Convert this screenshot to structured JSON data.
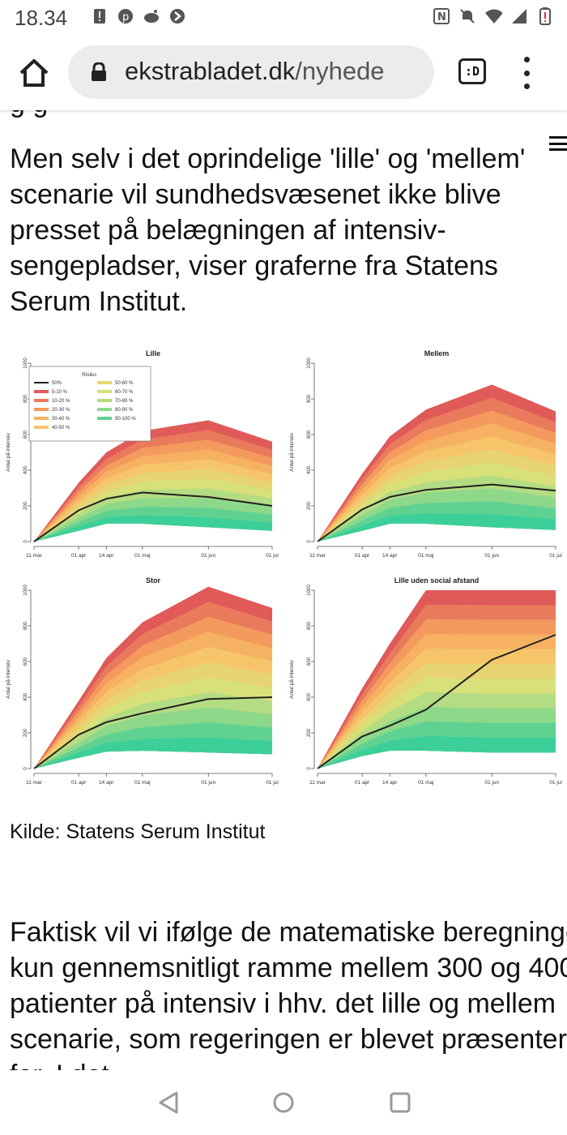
{
  "status_bar": {
    "time": "18.34",
    "left_icons": [
      "notification-icon",
      "pinterest-icon",
      "reddit-icon",
      "arrow-app-icon"
    ],
    "right_icons": [
      "nfc-icon",
      "mute-icon",
      "wifi-icon",
      "signal-icon",
      "battery-alert-icon"
    ]
  },
  "browser": {
    "url_host": "ekstrabladet.dk",
    "url_path": "/nyhede",
    "tabs_label": ":D"
  },
  "article": {
    "paragraph_1": "Men selv i det oprindelige 'lille' og 'mellem' scenarie vil sundhedsvæsenet ikke blive presset på belægningen af intensiv-sengepladser, viser graferne fra Statens Serum Institut.",
    "caption": "Kilde: Statens Serum Institut",
    "paragraph_2": "Faktisk vil vi ifølge de matematiske beregninger kun gennemsnitligt ramme mellem 300 og 400 patienter på intensiv i hhv. det lille og mellem scenarie, som regeringen er blevet præsenteret for. I det"
  },
  "chart_data": [
    {
      "type": "area",
      "title": "Lille",
      "ylabel": "Antal på intensiv",
      "x_ticks": [
        "11 mar",
        "01 apr",
        "14 apr",
        "01 maj",
        "01 jun",
        "01 jul"
      ],
      "y_ticks": [
        "0",
        "200",
        "400",
        "600",
        "800",
        "1000"
      ],
      "ylim": [
        0,
        1000
      ],
      "legend": {
        "title": "Risiko",
        "entries": [
          "50%",
          "5-10 %",
          "10-20 %",
          "20-30 %",
          "30-40 %",
          "40-50 %",
          "50-60 %",
          "60-70 %",
          "70-80 %",
          "80-90 %",
          "90-100 %"
        ],
        "placement": "top-left"
      },
      "x": [
        0,
        21,
        34,
        51,
        82,
        112
      ],
      "median": [
        0,
        175,
        240,
        275,
        250,
        200
      ],
      "upper": [
        0,
        330,
        500,
        620,
        680,
        560
      ],
      "lower": [
        0,
        60,
        100,
        100,
        80,
        60
      ]
    },
    {
      "type": "area",
      "title": "Mellem",
      "ylabel": "Antal på intensiv",
      "x_ticks": [
        "11 mar",
        "01 apr",
        "14 apr",
        "01 maj",
        "01 jun",
        "01 jul"
      ],
      "y_ticks": [
        "0",
        "200",
        "400",
        "600",
        "800",
        "1000"
      ],
      "ylim": [
        0,
        1000
      ],
      "x": [
        0,
        21,
        34,
        51,
        82,
        112
      ],
      "median": [
        0,
        180,
        250,
        290,
        320,
        285
      ],
      "upper": [
        0,
        380,
        590,
        740,
        880,
        730
      ],
      "lower": [
        0,
        60,
        100,
        100,
        80,
        65
      ]
    },
    {
      "type": "area",
      "title": "Stor",
      "ylabel": "Antal på intensiv",
      "x_ticks": [
        "11 mar",
        "01 apr",
        "14 apr",
        "01 maj",
        "01 jun",
        "01 jul"
      ],
      "y_ticks": [
        "0",
        "200",
        "400",
        "600",
        "800",
        "1000"
      ],
      "ylim": [
        0,
        1000
      ],
      "x": [
        0,
        21,
        34,
        51,
        82,
        112
      ],
      "median": [
        0,
        190,
        260,
        310,
        390,
        400
      ],
      "upper": [
        0,
        380,
        620,
        820,
        1020,
        900
      ],
      "lower": [
        0,
        60,
        95,
        100,
        90,
        80
      ]
    },
    {
      "type": "area",
      "title": "Lille uden social afstand",
      "ylabel": "Antal på intensiv",
      "x_ticks": [
        "11 mar",
        "01 apr",
        "14 apr",
        "01 maj",
        "01 jun",
        "01 jul"
      ],
      "y_ticks": [
        "0",
        "200",
        "400",
        "600",
        "800",
        "1000"
      ],
      "ylim": [
        0,
        1000
      ],
      "x": [
        0,
        21,
        34,
        51,
        82,
        112
      ],
      "median": [
        0,
        180,
        240,
        330,
        610,
        750
      ],
      "upper": [
        0,
        450,
        700,
        1000,
        1000,
        1000
      ],
      "lower": [
        0,
        70,
        100,
        100,
        90,
        90
      ]
    }
  ],
  "colors": {
    "band_outer": "#e05a5a",
    "band_mid_high": "#f49a5e",
    "band_mid": "#f6c56a",
    "band_mid_low": "#d8e07a",
    "band_low": "#8ed88a",
    "band_inner": "#3ccf9a",
    "median_line": "#222222",
    "accent": "#111111"
  }
}
